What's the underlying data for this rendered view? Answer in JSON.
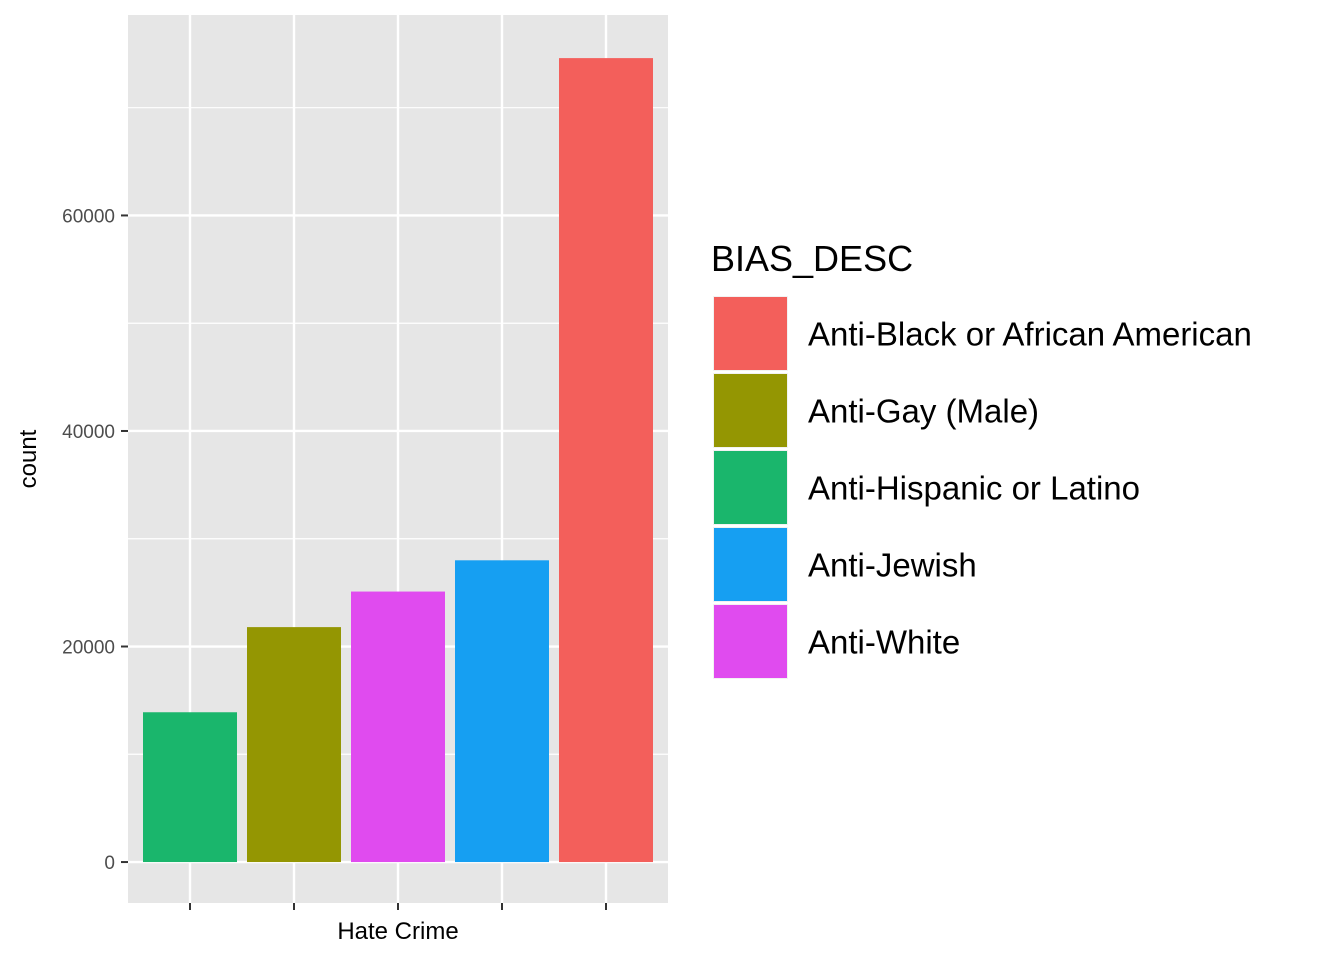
{
  "chart_data": {
    "type": "bar",
    "xlabel": "Hate Crime",
    "ylabel": "count",
    "ylim": [
      -3800,
      78600
    ],
    "y_ticks": [
      0,
      20000,
      40000,
      60000
    ],
    "y_tick_labels": [
      "0",
      "20000",
      "40000",
      "60000"
    ],
    "grid": true,
    "categories": [
      "Anti-Hispanic or Latino",
      "Anti-Gay (Male)",
      "Anti-White",
      "Anti-Jewish",
      "Anti-Black or African American"
    ],
    "values": [
      13900,
      21800,
      25100,
      28000,
      74600
    ],
    "bar_colors": [
      "#1ab66c",
      "#949602",
      "#e04bef",
      "#169ff2",
      "#f35f5b"
    ],
    "legend": {
      "title": "BIAS_DESC",
      "position": "right",
      "entries": [
        {
          "label": "Anti-Black or African American",
          "color": "#f35f5b"
        },
        {
          "label": "Anti-Gay (Male)",
          "color": "#949602"
        },
        {
          "label": "Anti-Hispanic or Latino",
          "color": "#1ab66c"
        },
        {
          "label": "Anti-Jewish",
          "color": "#169ff2"
        },
        {
          "label": "Anti-White",
          "color": "#e04bef"
        }
      ]
    },
    "panel_color": "#e6e6e6",
    "grid_color": "#ffffff"
  }
}
